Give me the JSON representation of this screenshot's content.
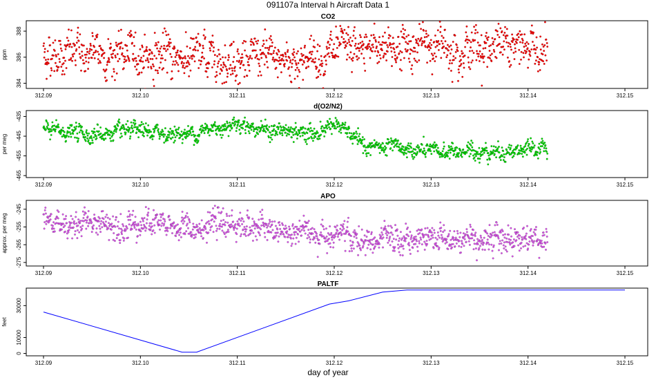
{
  "figure_title": "091107a   Interval h Aircraft Data 1",
  "x_axis_label": "day of year",
  "chart_data": [
    {
      "type": "scatter",
      "title": "CO2",
      "ylabel": "ppm",
      "color": "#ff0000",
      "xlim": [
        312.09,
        312.15
      ],
      "ylim": [
        383.6,
        388.8
      ],
      "x_ticks": [
        "312.09",
        "312.10",
        "312.11",
        "312.12",
        "312.13",
        "312.14",
        "312.15"
      ],
      "y_ticks": [
        "384",
        "386",
        "388"
      ],
      "data_range": [
        312.09,
        312.142
      ],
      "trend": [
        [
          312.09,
          386.3
        ],
        [
          312.1,
          386.2
        ],
        [
          312.11,
          385.9
        ],
        [
          312.115,
          385.8
        ],
        [
          312.12,
          386.2
        ],
        [
          312.125,
          386.8
        ],
        [
          312.13,
          386.9
        ],
        [
          312.142,
          386.7
        ]
      ],
      "noise": 0.85
    },
    {
      "type": "scatter",
      "title": "d(O2/N2)",
      "ylabel": "per meg",
      "color": "#00dd00",
      "xlim": [
        312.09,
        312.15
      ],
      "ylim": [
        -466,
        -432
      ],
      "x_ticks": [
        "312.09",
        "312.10",
        "312.11",
        "312.12",
        "312.13",
        "312.14",
        "312.15"
      ],
      "y_ticks": [
        "-435",
        "-445",
        "-455",
        "-465"
      ],
      "data_range": [
        312.09,
        312.142
      ],
      "trend": [
        [
          312.09,
          -442
        ],
        [
          312.095,
          -444
        ],
        [
          312.1,
          -443
        ],
        [
          312.105,
          -444
        ],
        [
          312.11,
          -438
        ],
        [
          312.113,
          -442
        ],
        [
          312.118,
          -444
        ],
        [
          312.12,
          -438
        ],
        [
          312.123,
          -450
        ],
        [
          312.13,
          -453
        ],
        [
          312.142,
          -452
        ]
      ],
      "noise": 2.2
    },
    {
      "type": "scatter",
      "title": "APO",
      "ylabel": "approx. per meg",
      "color": "#dd55ee",
      "xlim": [
        312.09,
        312.15
      ],
      "ylim": [
        -277,
        -240
      ],
      "x_ticks": [
        "312.09",
        "312.10",
        "312.11",
        "312.12",
        "312.13",
        "312.14",
        "312.15"
      ],
      "y_ticks": [
        "-245",
        "-255",
        "-265",
        "-275"
      ],
      "data_range": [
        312.09,
        312.142
      ],
      "trend": [
        [
          312.09,
          -253
        ],
        [
          312.1,
          -253
        ],
        [
          312.105,
          -256
        ],
        [
          312.11,
          -253
        ],
        [
          312.115,
          -259
        ],
        [
          312.12,
          -258
        ],
        [
          312.123,
          -264
        ],
        [
          312.13,
          -261
        ],
        [
          312.142,
          -261
        ]
      ],
      "noise": 4.0
    },
    {
      "type": "line",
      "title": "PALTF",
      "ylabel": "feet",
      "color": "#0000ff",
      "xlim": [
        312.09,
        312.15
      ],
      "ylim": [
        -1500,
        41000
      ],
      "x_ticks": [
        "312.09",
        "312.10",
        "312.11",
        "312.12",
        "312.13",
        "312.14",
        "312.15"
      ],
      "y_ticks": [
        "0",
        "10000",
        "30000"
      ],
      "points": [
        [
          312.09,
          26000
        ],
        [
          312.1043,
          800
        ],
        [
          312.1058,
          800
        ],
        [
          312.1195,
          31000
        ],
        [
          312.1215,
          33000
        ],
        [
          312.125,
          38500
        ],
        [
          312.1275,
          39800
        ],
        [
          312.15,
          39800
        ]
      ]
    }
  ]
}
